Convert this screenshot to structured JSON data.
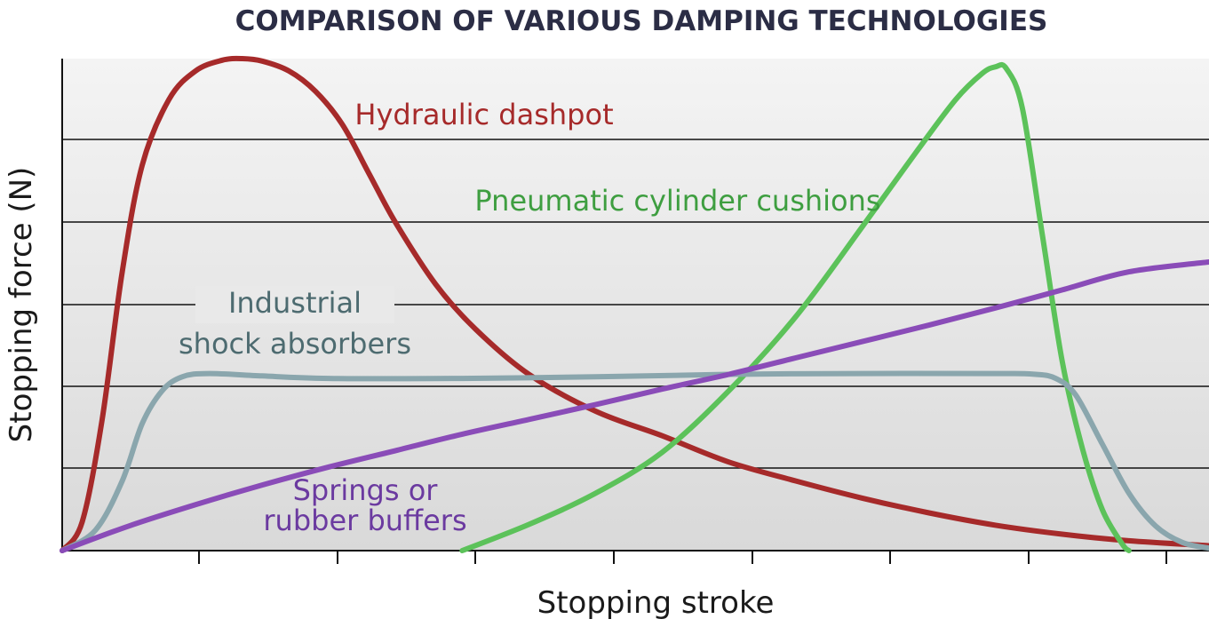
{
  "chart_data": {
    "type": "line",
    "title": "COMPARISON OF VARIOUS DAMPING TECHNOLOGIES",
    "xlabel": "Stopping stroke",
    "ylabel": "Stopping force (N)",
    "xlim": [
      0,
      8.6
    ],
    "ylim": [
      0,
      6
    ],
    "grid": true,
    "x_tick_count": 8,
    "series": [
      {
        "name": "Hydraulic dashpot",
        "label_lines": [
          "Hydraulic dashpot"
        ],
        "color": "#a62a2a",
        "x": [
          0,
          0.15,
          0.3,
          0.45,
          0.6,
          0.8,
          1.0,
          1.2,
          1.35,
          1.5,
          1.7,
          1.9,
          2.1,
          2.3,
          2.5,
          2.8,
          3.1,
          3.5,
          4.0,
          4.5,
          5.0,
          5.5,
          6.0,
          6.5,
          7.0,
          7.5,
          8.0,
          8.6
        ],
        "y": [
          0,
          0.35,
          1.6,
          3.4,
          4.7,
          5.5,
          5.85,
          5.98,
          6.0,
          5.97,
          5.85,
          5.6,
          5.2,
          4.6,
          4.0,
          3.25,
          2.7,
          2.15,
          1.7,
          1.4,
          1.08,
          0.85,
          0.64,
          0.46,
          0.31,
          0.2,
          0.12,
          0.06
        ]
      },
      {
        "name": "Pneumatic cylinder cushions",
        "label_lines": [
          "Pneumatic cylinder cushions"
        ],
        "color": "#5cc25a",
        "x": [
          3.0,
          3.5,
          4.0,
          4.5,
          5.0,
          5.5,
          6.0,
          6.4,
          6.7,
          6.9,
          7.0,
          7.08,
          7.2,
          7.35,
          7.5,
          7.65,
          7.8,
          7.95,
          8.0
        ],
        "y": [
          0,
          0.32,
          0.7,
          1.2,
          1.95,
          2.85,
          3.95,
          4.85,
          5.5,
          5.82,
          5.9,
          5.88,
          5.4,
          3.85,
          2.3,
          1.25,
          0.5,
          0.08,
          0
        ]
      },
      {
        "name": "Industrial shock absorbers",
        "label_lines": [
          "Industrial",
          "shock absorbers"
        ],
        "color": "#8aa6ad",
        "x": [
          0,
          0.25,
          0.45,
          0.6,
          0.75,
          0.9,
          1.1,
          1.5,
          2.0,
          3.0,
          4.0,
          5.0,
          6.0,
          7.0,
          7.3,
          7.45,
          7.6,
          7.8,
          8.0,
          8.2,
          8.4,
          8.6
        ],
        "y": [
          0,
          0.25,
          0.85,
          1.55,
          1.95,
          2.12,
          2.16,
          2.13,
          2.1,
          2.1,
          2.12,
          2.15,
          2.16,
          2.16,
          2.15,
          2.1,
          1.9,
          1.3,
          0.7,
          0.3,
          0.1,
          0.03
        ]
      },
      {
        "name": "Springs or rubber buffers",
        "label_lines": [
          "Springs or",
          "rubber buffers"
        ],
        "color": "#8a4cb8",
        "x": [
          0,
          0.5,
          1.0,
          1.5,
          2.0,
          2.5,
          3.0,
          3.5,
          4.0,
          4.5,
          5.0,
          5.5,
          6.0,
          6.5,
          7.0,
          7.5,
          8.0,
          8.6
        ],
        "y": [
          0,
          0.3,
          0.56,
          0.8,
          1.02,
          1.22,
          1.42,
          1.6,
          1.78,
          1.97,
          2.15,
          2.35,
          2.55,
          2.75,
          2.96,
          3.18,
          3.4,
          3.52
        ]
      }
    ]
  }
}
